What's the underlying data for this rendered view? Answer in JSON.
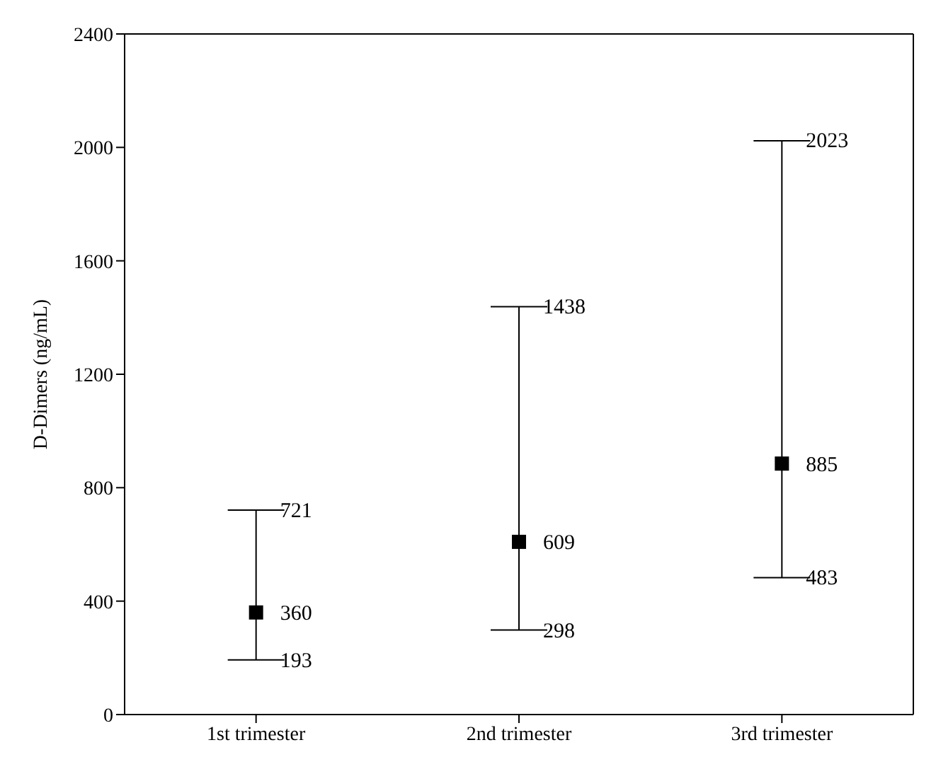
{
  "chart_data": {
    "type": "scatter",
    "ylabel": "D-Dimers (ng/mL)",
    "categories": [
      "1st trimester",
      "2nd trimester",
      "3rd trimester"
    ],
    "series": [
      {
        "color": "#000000",
        "values": [
          360,
          609,
          885
        ],
        "errors": [
          [
            193,
            721
          ],
          [
            298,
            1438
          ],
          [
            483,
            2023
          ]
        ]
      }
    ],
    "annotations": [
      {
        "text": "193",
        "x": "1st trimester",
        "y": 193
      },
      {
        "text": "721",
        "x": "1st trimester",
        "y": 721
      },
      {
        "text": "298",
        "x": "2nd trimester",
        "y": 298
      },
      {
        "text": "1438",
        "x": "2nd trimester",
        "y": 1438
      },
      {
        "text": "483",
        "x": "3rd trimester",
        "y": 483
      },
      {
        "text": "2023",
        "x": "3rd trimester",
        "y": 2023
      }
    ],
    "ylim": [
      0,
      2400
    ],
    "yticks": [
      0,
      400,
      800,
      1200,
      1600,
      2000,
      2400
    ],
    "marker": "square",
    "data_labels": true
  }
}
